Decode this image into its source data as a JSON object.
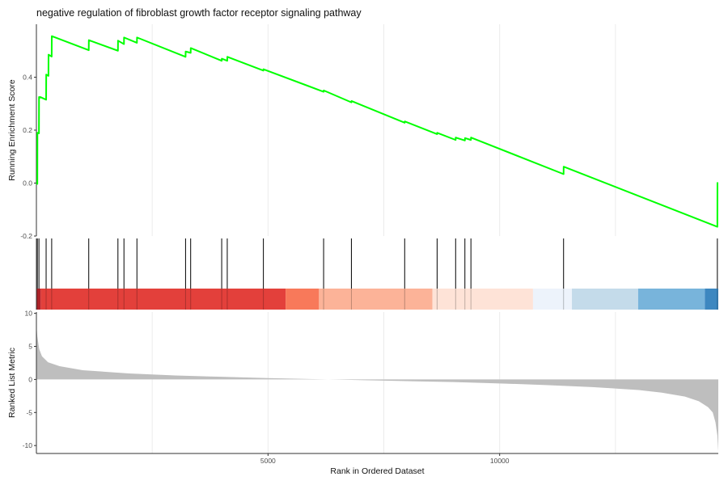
{
  "chart_data": {
    "type": "line",
    "title": "negative regulation of fibroblast growth factor receptor signaling pathway",
    "x_max": 14720,
    "colors": {
      "es_line": "#00ff00",
      "hit_line": "#000000",
      "metric_fill": "#bebebe",
      "grid": "#ebebeb"
    },
    "panels": {
      "running_score": {
        "ylabel": "Running Enrichment Score",
        "ylim": [
          -0.2,
          0.6
        ],
        "yticks": [
          -0.2,
          0.0,
          0.2,
          0.4
        ],
        "ytick_labels": [
          "-0.2",
          "0.0",
          "0.2",
          "0.4"
        ],
        "series": [
          {
            "x": [
              1,
              20,
              22,
              55,
              57,
              82,
              84,
              210,
              212,
              260,
              262,
              330,
              332,
              1130,
              1132,
              1760,
              1762,
              1890,
              1892,
              2170,
              2172,
              3220,
              3222,
              3330,
              3332,
              4000,
              4002,
              4120,
              4122,
              4900,
              4902,
              6200,
              6202,
              6800,
              6802,
              7950,
              7952,
              8650,
              8652,
              9050,
              9052,
              9250,
              9252,
              9380,
              9382,
              11380,
              11382,
              14700,
              14702
            ],
            "y": [
              0.0,
              -0.003,
              0.19,
              0.188,
              0.325,
              0.323,
              0.325,
              0.315,
              0.41,
              0.405,
              0.485,
              0.478,
              0.555,
              0.502,
              0.54,
              0.5,
              0.538,
              0.525,
              0.55,
              0.53,
              0.55,
              0.477,
              0.497,
              0.492,
              0.51,
              0.462,
              0.47,
              0.462,
              0.477,
              0.425,
              0.43,
              0.345,
              0.35,
              0.305,
              0.31,
              0.228,
              0.233,
              0.185,
              0.19,
              0.163,
              0.172,
              0.161,
              0.17,
              0.163,
              0.172,
              0.034,
              0.062,
              -0.165,
              0.003
            ]
          }
        ]
      },
      "hits": {
        "positions": [
          20,
          55,
          210,
          330,
          1130,
          1760,
          1890,
          2170,
          3220,
          3330,
          4000,
          4120,
          4900,
          6200,
          6800,
          7950,
          8650,
          9050,
          9250,
          9380,
          11380,
          14700
        ]
      },
      "color_band": {
        "segments": [
          {
            "start": 0,
            "end": 100,
            "color": "#c2272d"
          },
          {
            "start": 100,
            "end": 5380,
            "color": "#e3403b"
          },
          {
            "start": 5380,
            "end": 6100,
            "color": "#f8795a"
          },
          {
            "start": 6100,
            "end": 8550,
            "color": "#fcb398"
          },
          {
            "start": 8550,
            "end": 10720,
            "color": "#fee3d7"
          },
          {
            "start": 10720,
            "end": 11560,
            "color": "#edf3fb"
          },
          {
            "start": 11560,
            "end": 12990,
            "color": "#c4dbea"
          },
          {
            "start": 12990,
            "end": 14430,
            "color": "#78b4db"
          },
          {
            "start": 14430,
            "end": 14720,
            "color": "#3d87c0"
          }
        ]
      },
      "ranked_metric": {
        "ylabel": "Ranked List Metric",
        "ylim": [
          -11.2,
          10.2
        ],
        "yticks": [
          10,
          5,
          0,
          -5,
          -10
        ],
        "ytick_labels": [
          "10",
          "5",
          "0",
          "-5",
          "-10"
        ],
        "curve": {
          "x": [
            0,
            20,
            60,
            120,
            250,
            500,
            1000,
            2000,
            3000,
            4000,
            5000,
            6000,
            7000,
            8000,
            9000,
            10000,
            11000,
            12000,
            13000,
            13500,
            14000,
            14300,
            14500,
            14600,
            14660,
            14700,
            14720
          ],
          "y": [
            8.2,
            6.5,
            4.6,
            3.5,
            2.6,
            2.0,
            1.4,
            0.9,
            0.6,
            0.4,
            0.2,
            0.05,
            -0.1,
            -0.25,
            -0.4,
            -0.6,
            -0.85,
            -1.15,
            -1.6,
            -2.0,
            -2.6,
            -3.3,
            -4.2,
            -5.0,
            -6.5,
            -8.5,
            -10.9
          ]
        }
      }
    },
    "xlabel": "Rank in Ordered Dataset",
    "xticks": [
      5000,
      10000
    ],
    "xtick_labels": [
      "5000",
      "10000"
    ],
    "x_gridlines": [
      2500,
      5000,
      7500,
      10000,
      12500
    ],
    "grid": true
  }
}
